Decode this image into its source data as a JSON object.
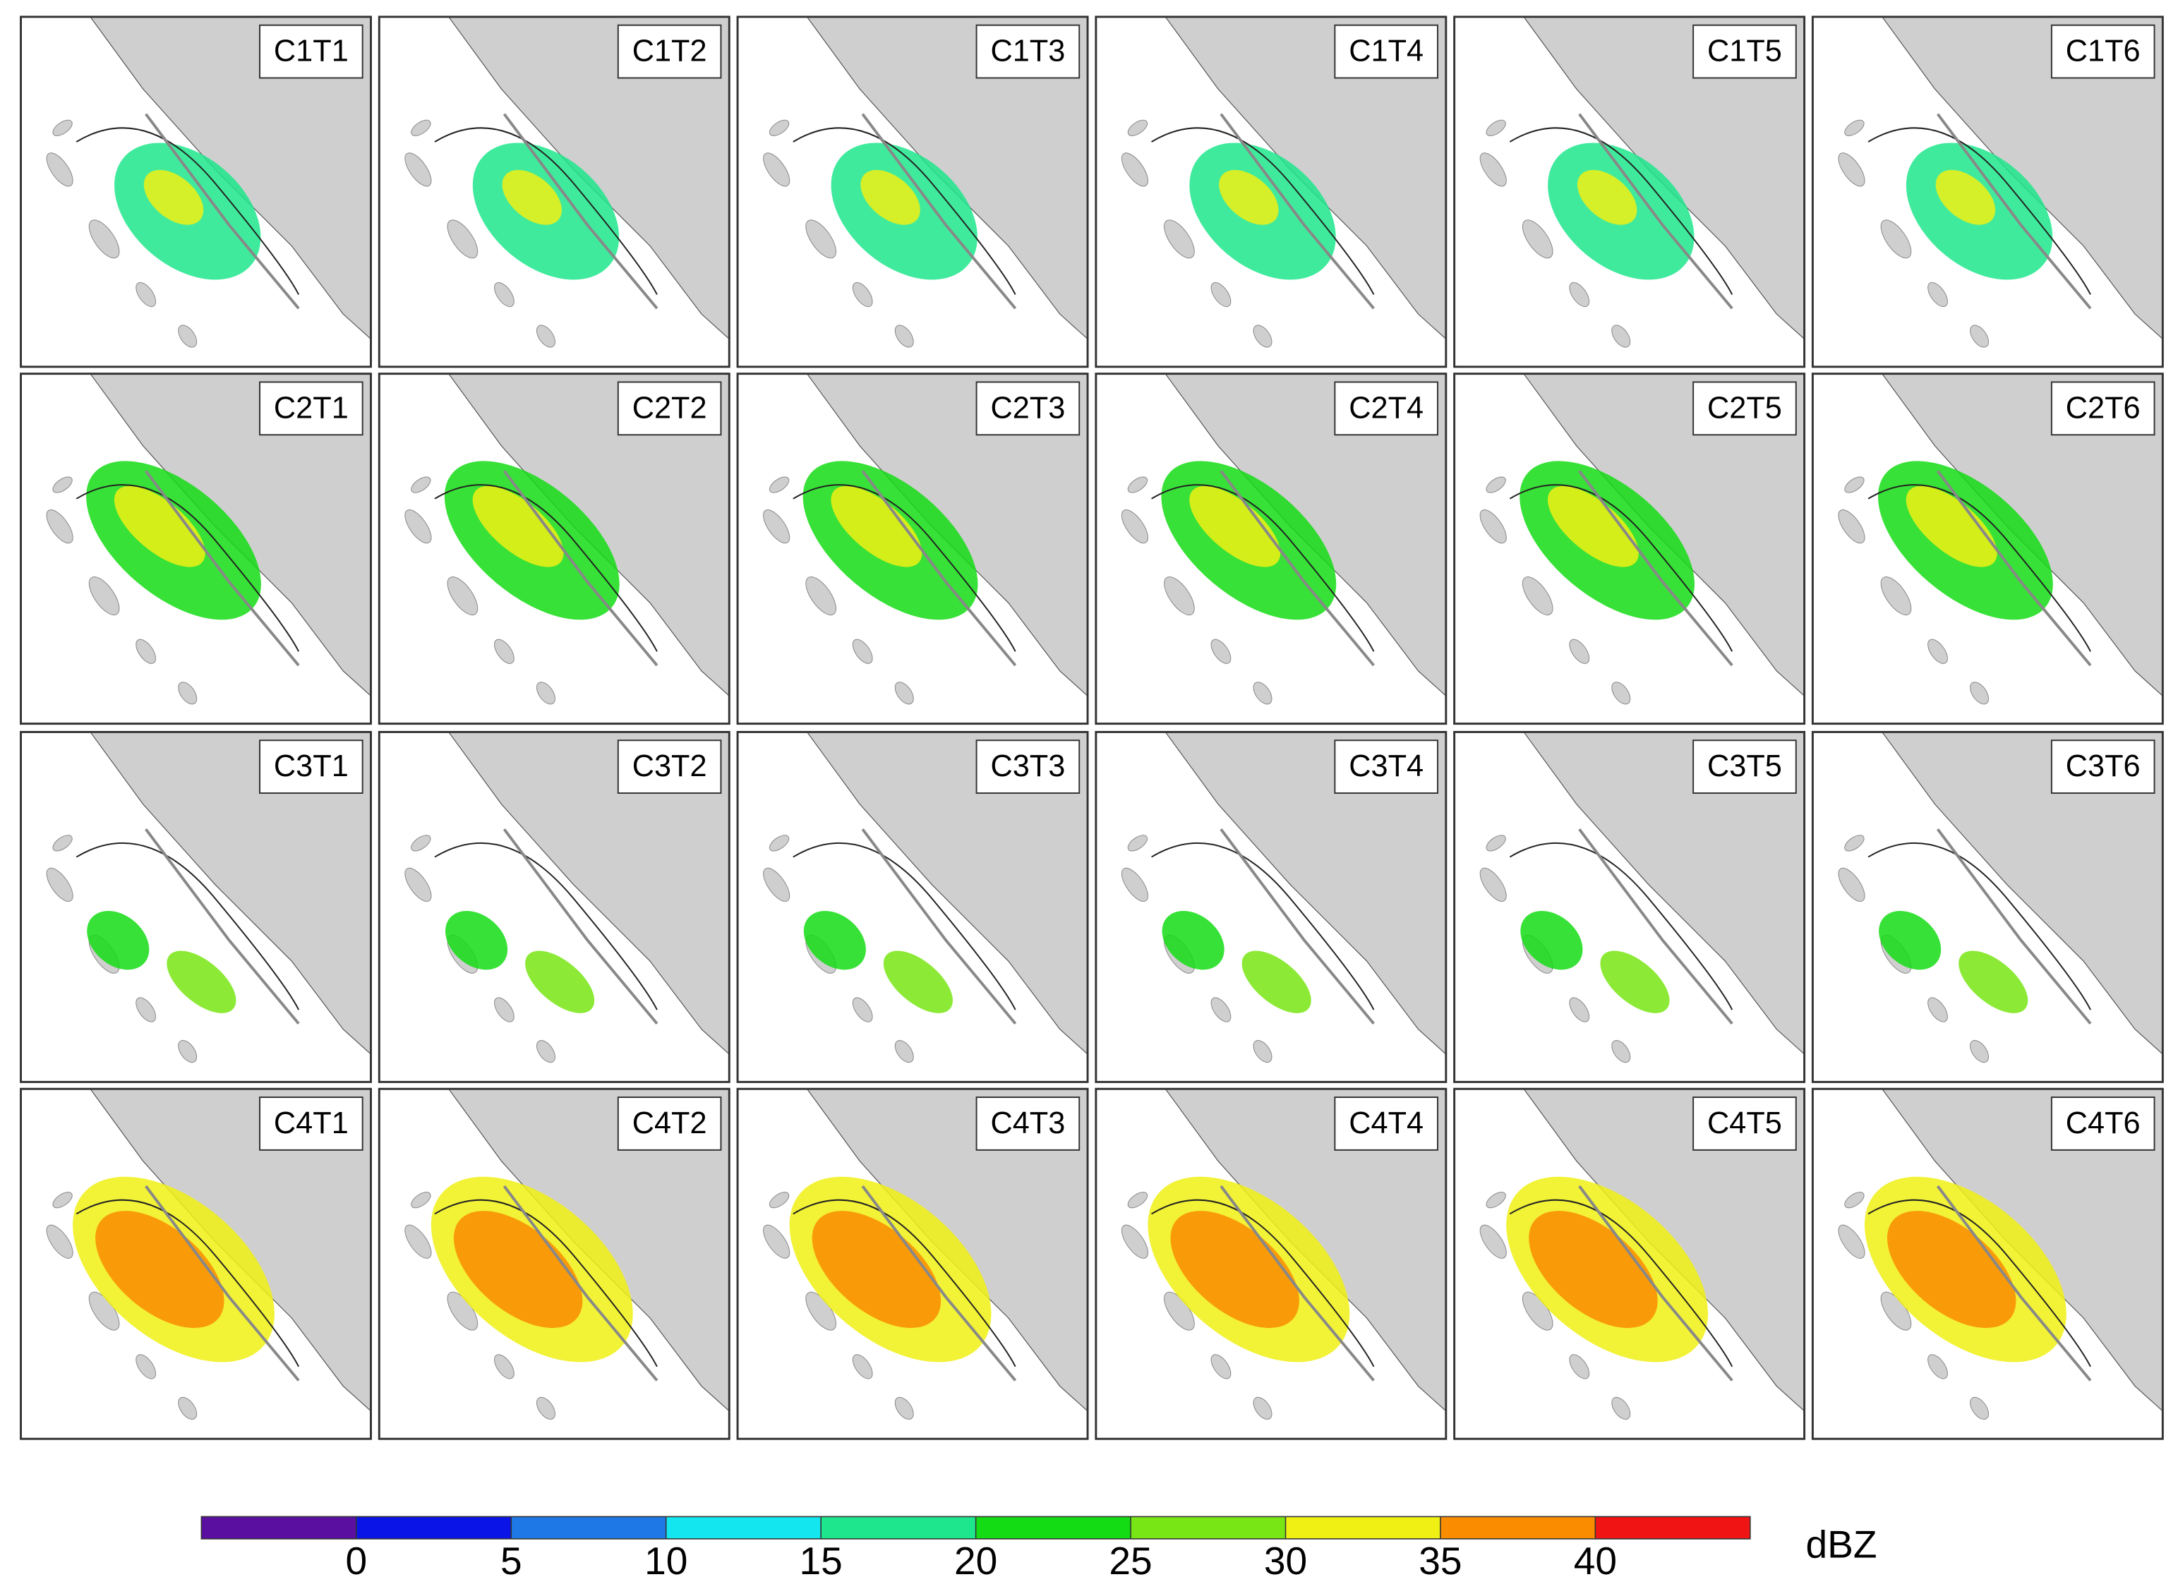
{
  "panels": [
    {
      "label": "C1T1"
    },
    {
      "label": "C1T2"
    },
    {
      "label": "C1T3"
    },
    {
      "label": "C1T4"
    },
    {
      "label": "C1T5"
    },
    {
      "label": "C1T6"
    },
    {
      "label": "C2T1"
    },
    {
      "label": "C2T2"
    },
    {
      "label": "C2T3"
    },
    {
      "label": "C2T4"
    },
    {
      "label": "C2T5"
    },
    {
      "label": "C2T6"
    },
    {
      "label": "C3T1"
    },
    {
      "label": "C3T2"
    },
    {
      "label": "C3T3"
    },
    {
      "label": "C3T4"
    },
    {
      "label": "C3T5"
    },
    {
      "label": "C3T6"
    },
    {
      "label": "C4T1"
    },
    {
      "label": "C4T2"
    },
    {
      "label": "C4T3"
    },
    {
      "label": "C4T4"
    },
    {
      "label": "C4T5"
    },
    {
      "label": "C4T6"
    }
  ],
  "colorbar": {
    "colors": [
      "#5a0fa0",
      "#0a14e6",
      "#1e78e6",
      "#14e6f0",
      "#1ee68c",
      "#14dc14",
      "#78e614",
      "#f0f014",
      "#fa8c00",
      "#f01414"
    ],
    "ticks": [
      0,
      5,
      10,
      15,
      20,
      25,
      30,
      35,
      40
    ],
    "unit": "dBZ"
  }
}
